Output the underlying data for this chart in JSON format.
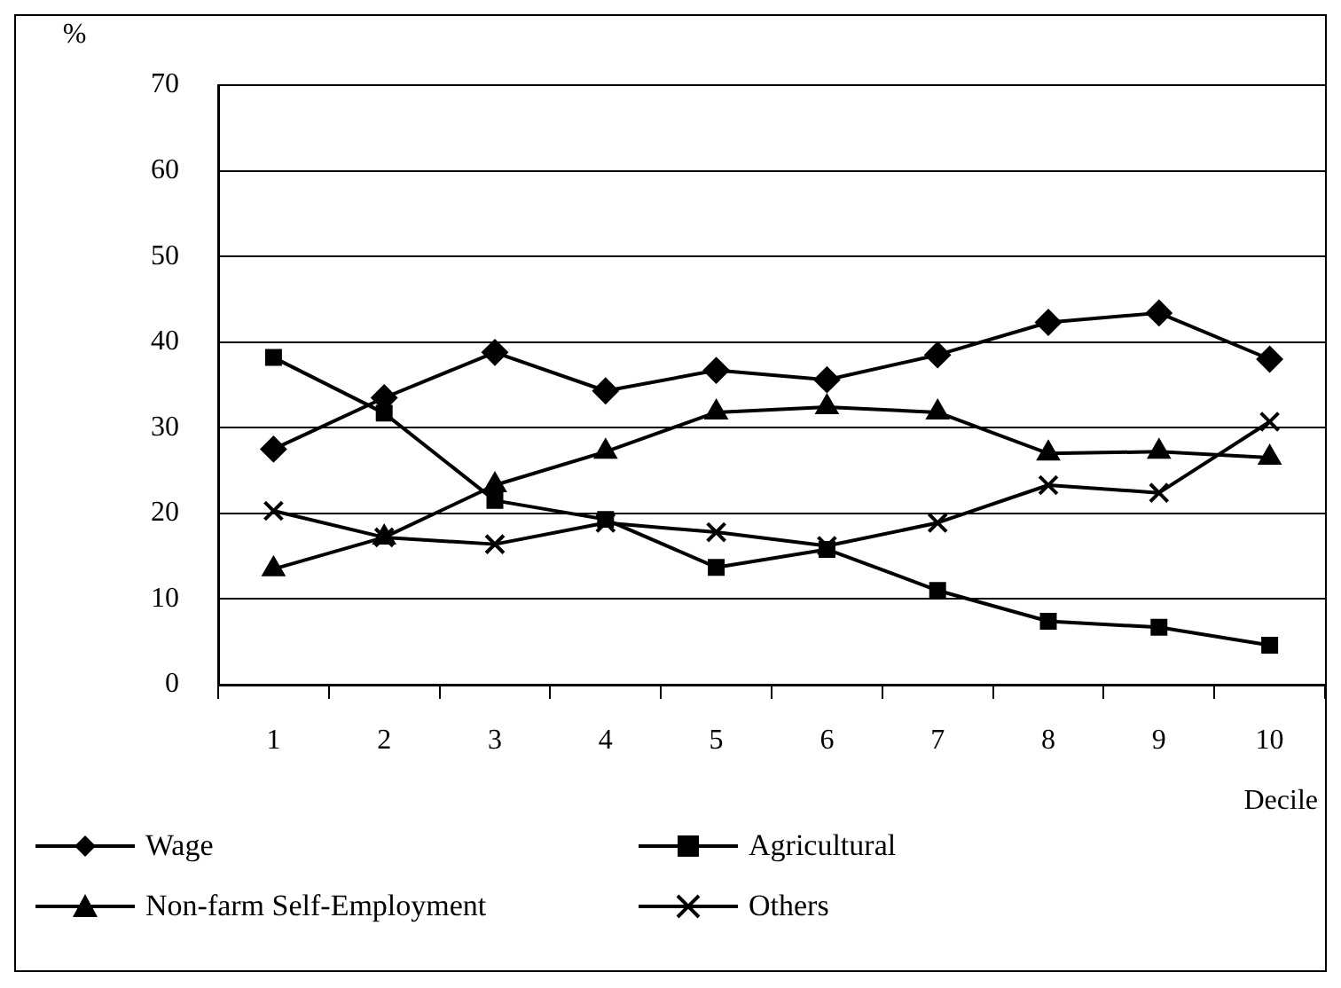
{
  "chart_data": {
    "type": "line",
    "ylabel": "%",
    "xlabel": "Decile",
    "categories": [
      "1",
      "2",
      "3",
      "4",
      "5",
      "6",
      "7",
      "8",
      "9",
      "10"
    ],
    "ylim": [
      0,
      70
    ],
    "yticks": [
      0,
      10,
      20,
      30,
      40,
      50,
      60,
      70
    ],
    "grid": "y",
    "legend": "bottom",
    "line_style": "solid",
    "series": [
      {
        "name": "Wage",
        "color": "#000000",
        "marker": "diamond",
        "values": [
          27.5,
          33.5,
          38.8,
          34.3,
          36.7,
          35.6,
          38.5,
          42.3,
          43.4,
          38.0
        ]
      },
      {
        "name": "Agricultural",
        "color": "#000000",
        "marker": "square",
        "values": [
          38.2,
          31.7,
          21.5,
          19.3,
          13.7,
          15.8,
          11.0,
          7.4,
          6.7,
          4.6
        ]
      },
      {
        "name": "Non-farm Self-Employment",
        "color": "#000000",
        "marker": "triangle",
        "values": [
          13.5,
          17.2,
          23.3,
          27.2,
          31.8,
          32.4,
          31.8,
          27.0,
          27.2,
          26.5
        ]
      },
      {
        "name": "Others",
        "color": "#000000",
        "marker": "cross",
        "values": [
          20.3,
          17.2,
          16.4,
          18.9,
          17.8,
          16.2,
          18.9,
          23.3,
          22.4,
          30.7
        ]
      }
    ]
  }
}
